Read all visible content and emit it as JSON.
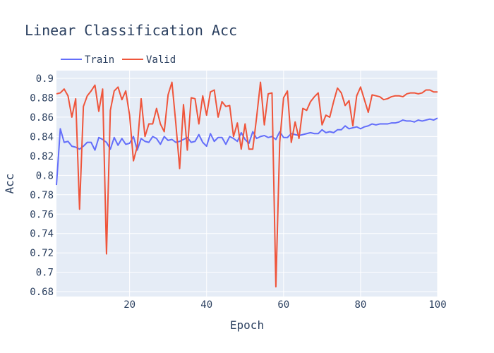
{
  "chart_data": {
    "type": "line",
    "title": "Linear Classification Acc",
    "xlabel": "Epoch",
    "ylabel": "Acc",
    "xlim": [
      1,
      100
    ],
    "ylim": [
      0.675,
      0.908
    ],
    "xticks": [
      20,
      40,
      60,
      80,
      100
    ],
    "yticks": [
      0.68,
      0.7,
      0.72,
      0.74,
      0.76,
      0.78,
      0.8,
      0.82,
      0.84,
      0.86,
      0.88,
      0.9
    ],
    "grid": true,
    "legend_position": "top-left",
    "x": [
      1,
      2,
      3,
      4,
      5,
      6,
      7,
      8,
      9,
      10,
      11,
      12,
      13,
      14,
      15,
      16,
      17,
      18,
      19,
      20,
      21,
      22,
      23,
      24,
      25,
      26,
      27,
      28,
      29,
      30,
      31,
      32,
      33,
      34,
      35,
      36,
      37,
      38,
      39,
      40,
      41,
      42,
      43,
      44,
      45,
      46,
      47,
      48,
      49,
      50,
      51,
      52,
      53,
      54,
      55,
      56,
      57,
      58,
      59,
      60,
      61,
      62,
      63,
      64,
      65,
      66,
      67,
      68,
      69,
      70,
      71,
      72,
      73,
      74,
      75,
      76,
      77,
      78,
      79,
      80,
      81,
      82,
      83,
      84,
      85,
      86,
      87,
      88,
      89,
      90,
      91,
      92,
      93,
      94,
      95,
      96,
      97,
      98,
      99,
      100
    ],
    "series": [
      {
        "name": "Train",
        "color": "#636efa",
        "values": [
          0.79,
          0.848,
          0.834,
          0.835,
          0.83,
          0.829,
          0.827,
          0.83,
          0.834,
          0.834,
          0.826,
          0.839,
          0.837,
          0.834,
          0.827,
          0.839,
          0.831,
          0.838,
          0.832,
          0.833,
          0.84,
          0.826,
          0.838,
          0.835,
          0.834,
          0.84,
          0.838,
          0.832,
          0.84,
          0.836,
          0.837,
          0.834,
          0.835,
          0.837,
          0.839,
          0.834,
          0.835,
          0.842,
          0.834,
          0.83,
          0.843,
          0.835,
          0.839,
          0.839,
          0.832,
          0.84,
          0.838,
          0.835,
          0.844,
          0.837,
          0.833,
          0.845,
          0.838,
          0.84,
          0.841,
          0.839,
          0.84,
          0.837,
          0.845,
          0.839,
          0.839,
          0.843,
          0.842,
          0.841,
          0.842,
          0.843,
          0.844,
          0.843,
          0.843,
          0.847,
          0.844,
          0.845,
          0.844,
          0.847,
          0.847,
          0.851,
          0.848,
          0.849,
          0.85,
          0.848,
          0.85,
          0.851,
          0.853,
          0.852,
          0.853,
          0.853,
          0.853,
          0.854,
          0.854,
          0.855,
          0.857,
          0.856,
          0.856,
          0.855,
          0.857,
          0.856,
          0.857,
          0.858,
          0.857,
          0.859
        ]
      },
      {
        "name": "Valid",
        "color": "#ef553b",
        "values": [
          0.884,
          0.885,
          0.889,
          0.882,
          0.86,
          0.879,
          0.765,
          0.871,
          0.882,
          0.887,
          0.893,
          0.866,
          0.889,
          0.719,
          0.867,
          0.887,
          0.891,
          0.878,
          0.887,
          0.862,
          0.815,
          0.83,
          0.879,
          0.84,
          0.853,
          0.853,
          0.869,
          0.853,
          0.845,
          0.883,
          0.896,
          0.854,
          0.807,
          0.873,
          0.826,
          0.88,
          0.879,
          0.853,
          0.882,
          0.862,
          0.886,
          0.888,
          0.86,
          0.876,
          0.871,
          0.872,
          0.84,
          0.854,
          0.827,
          0.853,
          0.827,
          0.827,
          0.86,
          0.896,
          0.852,
          0.884,
          0.885,
          0.685,
          0.834,
          0.88,
          0.887,
          0.834,
          0.855,
          0.838,
          0.869,
          0.867,
          0.876,
          0.881,
          0.885,
          0.852,
          0.862,
          0.86,
          0.876,
          0.89,
          0.885,
          0.872,
          0.877,
          0.851,
          0.882,
          0.891,
          0.878,
          0.865,
          0.883,
          0.882,
          0.881,
          0.878,
          0.879,
          0.881,
          0.882,
          0.882,
          0.881,
          0.884,
          0.885,
          0.885,
          0.884,
          0.885,
          0.888,
          0.888,
          0.886,
          0.886
        ]
      }
    ]
  }
}
